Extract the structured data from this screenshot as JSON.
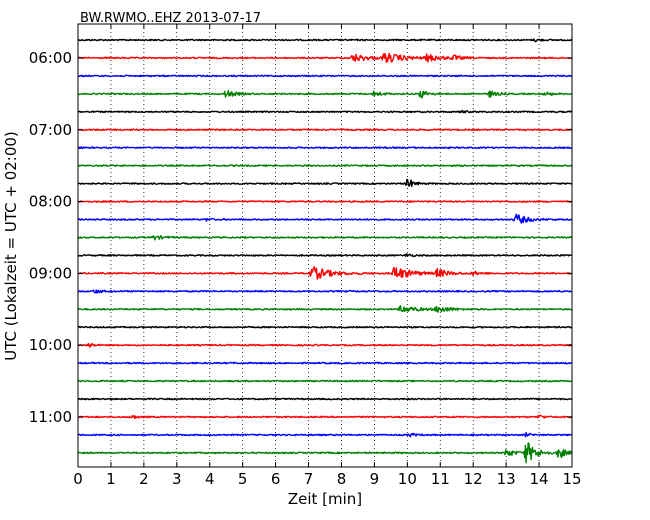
{
  "chart_data": {
    "type": "line",
    "title": "BW.RWMO..EHZ 2013-07-17",
    "xlabel": "Zeit  [min]",
    "ylabel": "UTC (Lokalzeit = UTC + 02:00)",
    "xlim": [
      0,
      15
    ],
    "x_ticks": [
      "0",
      "1",
      "2",
      "3",
      "4",
      "5",
      "6",
      "7",
      "8",
      "9",
      "10",
      "11",
      "12",
      "13",
      "14",
      "15"
    ],
    "y_ticks": [
      "06:00",
      "07:00",
      "08:00",
      "09:00",
      "10:00",
      "11:00"
    ],
    "grid": "vertical-dotted",
    "colors": [
      "#000000",
      "#ff0000",
      "#0000ff",
      "#008000"
    ],
    "series": [
      {
        "start": "05:45",
        "color": "#000000",
        "events": [
          {
            "t": 13.9,
            "amp": 0.25,
            "dur": 0.3
          }
        ]
      },
      {
        "start": "06:00",
        "color": "#ff0000",
        "events": [
          {
            "t": 8.35,
            "amp": 0.7,
            "dur": 0.9
          },
          {
            "t": 9.3,
            "amp": 0.85,
            "dur": 1.2
          },
          {
            "t": 10.6,
            "amp": 0.6,
            "dur": 0.8
          },
          {
            "t": 11.4,
            "amp": 0.35,
            "dur": 0.5
          }
        ]
      },
      {
        "start": "06:15",
        "color": "#0000ff",
        "events": []
      },
      {
        "start": "06:30",
        "color": "#008000",
        "events": [
          {
            "t": 4.5,
            "amp": 0.7,
            "dur": 0.5
          },
          {
            "t": 9.0,
            "amp": 0.55,
            "dur": 0.4
          },
          {
            "t": 10.4,
            "amp": 0.75,
            "dur": 0.4
          },
          {
            "t": 12.5,
            "amp": 0.55,
            "dur": 0.4
          },
          {
            "t": 14.2,
            "amp": 0.3,
            "dur": 0.4
          }
        ]
      },
      {
        "start": "06:45",
        "color": "#000000",
        "events": [
          {
            "t": 11.6,
            "amp": 0.2,
            "dur": 0.4
          }
        ]
      },
      {
        "start": "07:00",
        "color": "#ff0000",
        "events": []
      },
      {
        "start": "07:15",
        "color": "#0000ff",
        "events": []
      },
      {
        "start": "07:30",
        "color": "#008000",
        "events": []
      },
      {
        "start": "07:45",
        "color": "#000000",
        "events": [
          {
            "t": 10.0,
            "amp": 1.0,
            "dur": 0.35
          }
        ]
      },
      {
        "start": "08:00",
        "color": "#ff0000",
        "events": []
      },
      {
        "start": "08:15",
        "color": "#0000ff",
        "events": [
          {
            "t": 13.3,
            "amp": 0.9,
            "dur": 0.7
          },
          {
            "t": 3.9,
            "amp": 0.2,
            "dur": 0.3
          }
        ]
      },
      {
        "start": "08:30",
        "color": "#008000",
        "events": [
          {
            "t": 2.3,
            "amp": 0.35,
            "dur": 0.6
          }
        ]
      },
      {
        "start": "08:45",
        "color": "#000000",
        "events": [
          {
            "t": 10.0,
            "amp": 0.35,
            "dur": 0.25
          }
        ]
      },
      {
        "start": "09:00",
        "color": "#ff0000",
        "events": [
          {
            "t": 7.1,
            "amp": 1.2,
            "dur": 1.1
          },
          {
            "t": 9.6,
            "amp": 1.2,
            "dur": 1.0
          },
          {
            "t": 10.9,
            "amp": 0.7,
            "dur": 0.7
          },
          {
            "t": 12.0,
            "amp": 0.3,
            "dur": 0.4
          }
        ]
      },
      {
        "start": "09:15",
        "color": "#0000ff",
        "events": [
          {
            "t": 0.5,
            "amp": 0.3,
            "dur": 0.5
          }
        ]
      },
      {
        "start": "09:30",
        "color": "#008000",
        "events": [
          {
            "t": 9.8,
            "amp": 0.55,
            "dur": 1.1
          },
          {
            "t": 10.9,
            "amp": 0.6,
            "dur": 0.7
          }
        ]
      },
      {
        "start": "09:45",
        "color": "#000000",
        "events": []
      },
      {
        "start": "10:00",
        "color": "#ff0000",
        "events": [
          {
            "t": 0.35,
            "amp": 0.55,
            "dur": 0.2
          }
        ]
      },
      {
        "start": "10:15",
        "color": "#0000ff",
        "events": []
      },
      {
        "start": "10:30",
        "color": "#008000",
        "events": []
      },
      {
        "start": "10:45",
        "color": "#000000",
        "events": []
      },
      {
        "start": "11:00",
        "color": "#ff0000",
        "events": [
          {
            "t": 1.6,
            "amp": 0.3,
            "dur": 0.4
          },
          {
            "t": 14.0,
            "amp": 0.35,
            "dur": 0.3
          }
        ]
      },
      {
        "start": "11:15",
        "color": "#0000ff",
        "events": [
          {
            "t": 10.1,
            "amp": 0.25,
            "dur": 0.4
          },
          {
            "t": 13.6,
            "amp": 0.3,
            "dur": 0.3
          }
        ]
      },
      {
        "start": "11:30",
        "color": "#008000",
        "events": [
          {
            "t": 13.0,
            "amp": 0.7,
            "dur": 0.5
          },
          {
            "t": 13.6,
            "amp": 2.0,
            "dur": 0.6
          },
          {
            "t": 14.6,
            "amp": 1.0,
            "dur": 0.4
          }
        ]
      }
    ]
  }
}
